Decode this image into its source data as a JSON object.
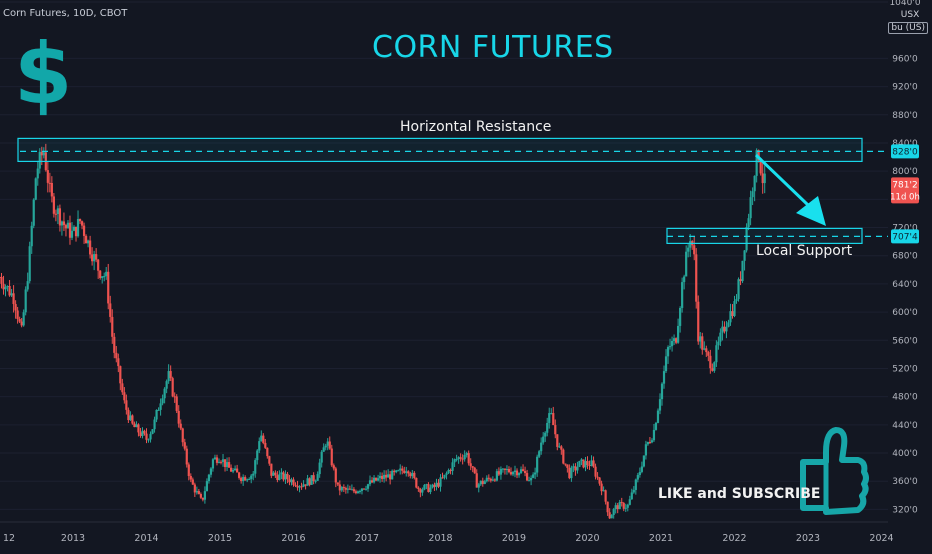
{
  "header": {
    "symbol": "Corn Futures, 10D, CBOT",
    "currency": "USX",
    "unit": "bu (US)",
    "headline": "CORN FUTURES",
    "dollar": "$"
  },
  "annotations": {
    "resistance": "Horizontal Resistance",
    "support": "Local Support",
    "cta": "LIKE and SUBSCRIBE",
    "like_icon": "thumbs-up-icon"
  },
  "colors": {
    "background": "#131722",
    "up": "#26a69a",
    "down": "#ef5350",
    "accent": "#18d6e8",
    "axis_text": "#b2b5be"
  },
  "price_labels": {
    "resistance": "828'0",
    "support": "707'4",
    "last": "781'2",
    "countdown": "11d 0h"
  },
  "chart_data": {
    "type": "candlestick",
    "title": "Corn Futures, 10D, CBOT",
    "ylim": [
      3050,
      10400
    ],
    "y_ticks": [
      "320'0",
      "360'0",
      "400'0",
      "440'0",
      "480'0",
      "520'0",
      "560'0",
      "600'0",
      "640'0",
      "680'0",
      "720'0",
      "760'0",
      "800'0",
      "840'0",
      "880'0",
      "920'0",
      "960'0",
      "1040'0"
    ],
    "y_tick_values": [
      3200,
      3600,
      4000,
      4400,
      4800,
      5200,
      5600,
      6000,
      6400,
      6800,
      7200,
      7600,
      8000,
      8400,
      8800,
      9200,
      9600,
      10400
    ],
    "x_ticks": [
      "12",
      "2013",
      "2014",
      "2015",
      "2016",
      "2017",
      "2018",
      "2019",
      "2020",
      "2021",
      "2022",
      "2023",
      "2024"
    ],
    "x_tick_values": [
      2012.0,
      2013.0,
      2014.0,
      2015.0,
      2016.0,
      2017.0,
      2018.0,
      2019.0,
      2020.0,
      2021.0,
      2022.0,
      2023.0,
      2024.0
    ],
    "price_path": [
      [
        2012.0,
        6500
      ],
      [
        2012.2,
        6200
      ],
      [
        2012.3,
        5700
      ],
      [
        2012.4,
        6700
      ],
      [
        2012.5,
        8000
      ],
      [
        2012.6,
        8300
      ],
      [
        2012.7,
        7600
      ],
      [
        2012.8,
        7400
      ],
      [
        2012.9,
        7200
      ],
      [
        2013.0,
        7100
      ],
      [
        2013.1,
        7300
      ],
      [
        2013.2,
        7000
      ],
      [
        2013.35,
        6600
      ],
      [
        2013.45,
        6500
      ],
      [
        2013.55,
        5500
      ],
      [
        2013.7,
        4700
      ],
      [
        2013.8,
        4400
      ],
      [
        2013.9,
        4300
      ],
      [
        2014.0,
        4200
      ],
      [
        2014.1,
        4400
      ],
      [
        2014.2,
        4800
      ],
      [
        2014.3,
        5100
      ],
      [
        2014.4,
        4700
      ],
      [
        2014.5,
        4100
      ],
      [
        2014.6,
        3600
      ],
      [
        2014.75,
        3300
      ],
      [
        2014.9,
        3900
      ],
      [
        2015.0,
        3950
      ],
      [
        2015.1,
        3800
      ],
      [
        2015.3,
        3650
      ],
      [
        2015.45,
        3700
      ],
      [
        2015.55,
        4300
      ],
      [
        2015.7,
        3700
      ],
      [
        2015.9,
        3650
      ],
      [
        2016.1,
        3550
      ],
      [
        2016.3,
        3650
      ],
      [
        2016.45,
        4200
      ],
      [
        2016.6,
        3500
      ],
      [
        2016.8,
        3450
      ],
      [
        2017.0,
        3550
      ],
      [
        2017.2,
        3650
      ],
      [
        2017.4,
        3700
      ],
      [
        2017.55,
        3800
      ],
      [
        2017.7,
        3500
      ],
      [
        2017.9,
        3500
      ],
      [
        2018.05,
        3650
      ],
      [
        2018.2,
        3900
      ],
      [
        2018.35,
        4000
      ],
      [
        2018.5,
        3550
      ],
      [
        2018.7,
        3650
      ],
      [
        2018.9,
        3750
      ],
      [
        2019.1,
        3750
      ],
      [
        2019.25,
        3600
      ],
      [
        2019.4,
        4300
      ],
      [
        2019.5,
        4550
      ],
      [
        2019.6,
        4100
      ],
      [
        2019.75,
        3700
      ],
      [
        2019.9,
        3850
      ],
      [
        2020.05,
        3850
      ],
      [
        2020.2,
        3500
      ],
      [
        2020.3,
        3100
      ],
      [
        2020.4,
        3250
      ],
      [
        2020.55,
        3250
      ],
      [
        2020.7,
        3700
      ],
      [
        2020.8,
        4100
      ],
      [
        2020.9,
        4300
      ],
      [
        2021.0,
        4900
      ],
      [
        2021.1,
        5500
      ],
      [
        2021.2,
        5600
      ],
      [
        2021.3,
        6500
      ],
      [
        2021.4,
        7100
      ],
      [
        2021.45,
        6800
      ],
      [
        2021.5,
        5700
      ],
      [
        2021.6,
        5400
      ],
      [
        2021.7,
        5250
      ],
      [
        2021.8,
        5600
      ],
      [
        2021.9,
        5900
      ],
      [
        2022.0,
        6100
      ],
      [
        2022.08,
        6500
      ],
      [
        2022.15,
        7100
      ],
      [
        2022.22,
        7600
      ],
      [
        2022.28,
        8100
      ],
      [
        2022.33,
        8250
      ],
      [
        2022.38,
        7900
      ],
      [
        2022.42,
        7812
      ]
    ],
    "resistance_level": 8280,
    "support_level": 7074,
    "last_price": 7812
  }
}
